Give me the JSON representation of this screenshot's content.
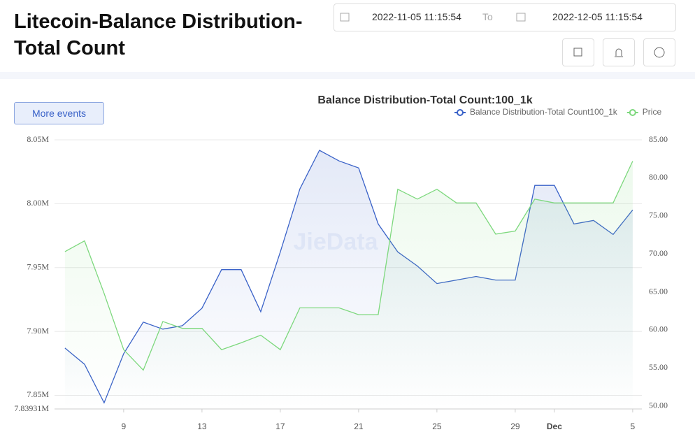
{
  "header": {
    "title": "Litecoin-Balance Distribution-Total Count",
    "date_from": "2022-11-05 11:15:54",
    "date_separator": "To",
    "date_to": "2022-12-05 11:15:54"
  },
  "more_events": "More events",
  "watermark": "JieData",
  "chart_data": {
    "type": "line",
    "title": "Balance Distribution-Total Count:100_1k",
    "x": [
      "2022-11-06 00:00",
      "2022-11-07 00:00",
      "2022-11-08 00:00",
      "2022-11-09 00:00",
      "2022-11-10 00:00",
      "2022-11-11 00:00",
      "2022-11-12 00:00",
      "2022-11-13 00:00",
      "2022-11-14 00:00",
      "2022-11-15 00:00",
      "2022-11-16 00:00",
      "2022-11-17 00:00",
      "2022-11-18 00:00",
      "2022-11-19 00:00",
      "2022-11-20 00:00",
      "2022-11-21 00:00",
      "2022-11-22 00:00",
      "2022-11-23 00:00",
      "2022-11-24 00:00",
      "2022-11-25 00:00",
      "2022-11-26 00:00",
      "2022-11-27 00:00",
      "2022-11-28 00:00",
      "2022-11-29 00:00",
      "2022-11-30 00:00",
      "2022-12-01 00:00",
      "2022-12-02 00:00",
      "2022-12-03 00:00",
      "2022-12-04 00:00",
      "2022-12-05 00:00"
    ],
    "xlim": [
      "2022-11-05 11:15",
      "2022-12-05 11:15"
    ],
    "xticks": [
      {
        "value": "2022-11-09 00:00",
        "label": "9"
      },
      {
        "value": "2022-11-13 00:00",
        "label": "13"
      },
      {
        "value": "2022-11-17 00:00",
        "label": "17"
      },
      {
        "value": "2022-11-21 00:00",
        "label": "21"
      },
      {
        "value": "2022-11-25 00:00",
        "label": "25"
      },
      {
        "value": "2022-11-29 00:00",
        "label": "29"
      },
      {
        "value": "2022-12-01 00:00",
        "label": "Dec"
      },
      {
        "value": "2022-12-05 00:00",
        "label": "5"
      }
    ],
    "ylim": [
      7839310,
      8050000
    ],
    "yticks": [
      {
        "value": 7839310,
        "label": "7.83931M"
      },
      {
        "value": 7850000,
        "label": "7.85M"
      },
      {
        "value": 7900000,
        "label": "7.90M"
      },
      {
        "value": 7950000,
        "label": "7.95M"
      },
      {
        "value": 8000000,
        "label": "8.00M"
      },
      {
        "value": 8050000,
        "label": "8.05M"
      }
    ],
    "y2lim": [
      49.6,
      85
    ],
    "y2ticks": [
      {
        "value": 50,
        "label": "50.00"
      },
      {
        "value": 55,
        "label": "55.00"
      },
      {
        "value": 60,
        "label": "60.00"
      },
      {
        "value": 65,
        "label": "65.00"
      },
      {
        "value": 70,
        "label": "70.00"
      },
      {
        "value": 75,
        "label": "75.00"
      },
      {
        "value": 80,
        "label": "80.00"
      },
      {
        "value": 85,
        "label": "85.00"
      }
    ],
    "grid": true,
    "series": [
      {
        "name": "Balance Distribution-Total Count100_1k",
        "color": "#3a62c8",
        "values": [
          7887000,
          7874300,
          7844100,
          7882600,
          7907300,
          7901800,
          7904500,
          7918200,
          7948400,
          7948400,
          7915500,
          7962200,
          8011600,
          8041800,
          8033500,
          8028000,
          7984100,
          7962200,
          7951200,
          7937500,
          7940200,
          7943000,
          7940200,
          7940200,
          8014300,
          8014300,
          7984100,
          7986900,
          7975900,
          7995100
        ]
      },
      {
        "name": "Price",
        "color": "#7dd87d",
        "axis": "y2",
        "values": [
          70.3,
          71.7,
          64.8,
          57.4,
          54.7,
          61.1,
          60.2,
          60.2,
          57.4,
          58.3,
          59.3,
          57.4,
          62.9,
          62.9,
          62.9,
          62.0,
          62.0,
          78.5,
          77.2,
          78.5,
          76.7,
          76.7,
          72.6,
          73.0,
          77.2,
          76.7,
          76.7,
          76.7,
          76.7,
          82.2
        ]
      }
    ]
  }
}
